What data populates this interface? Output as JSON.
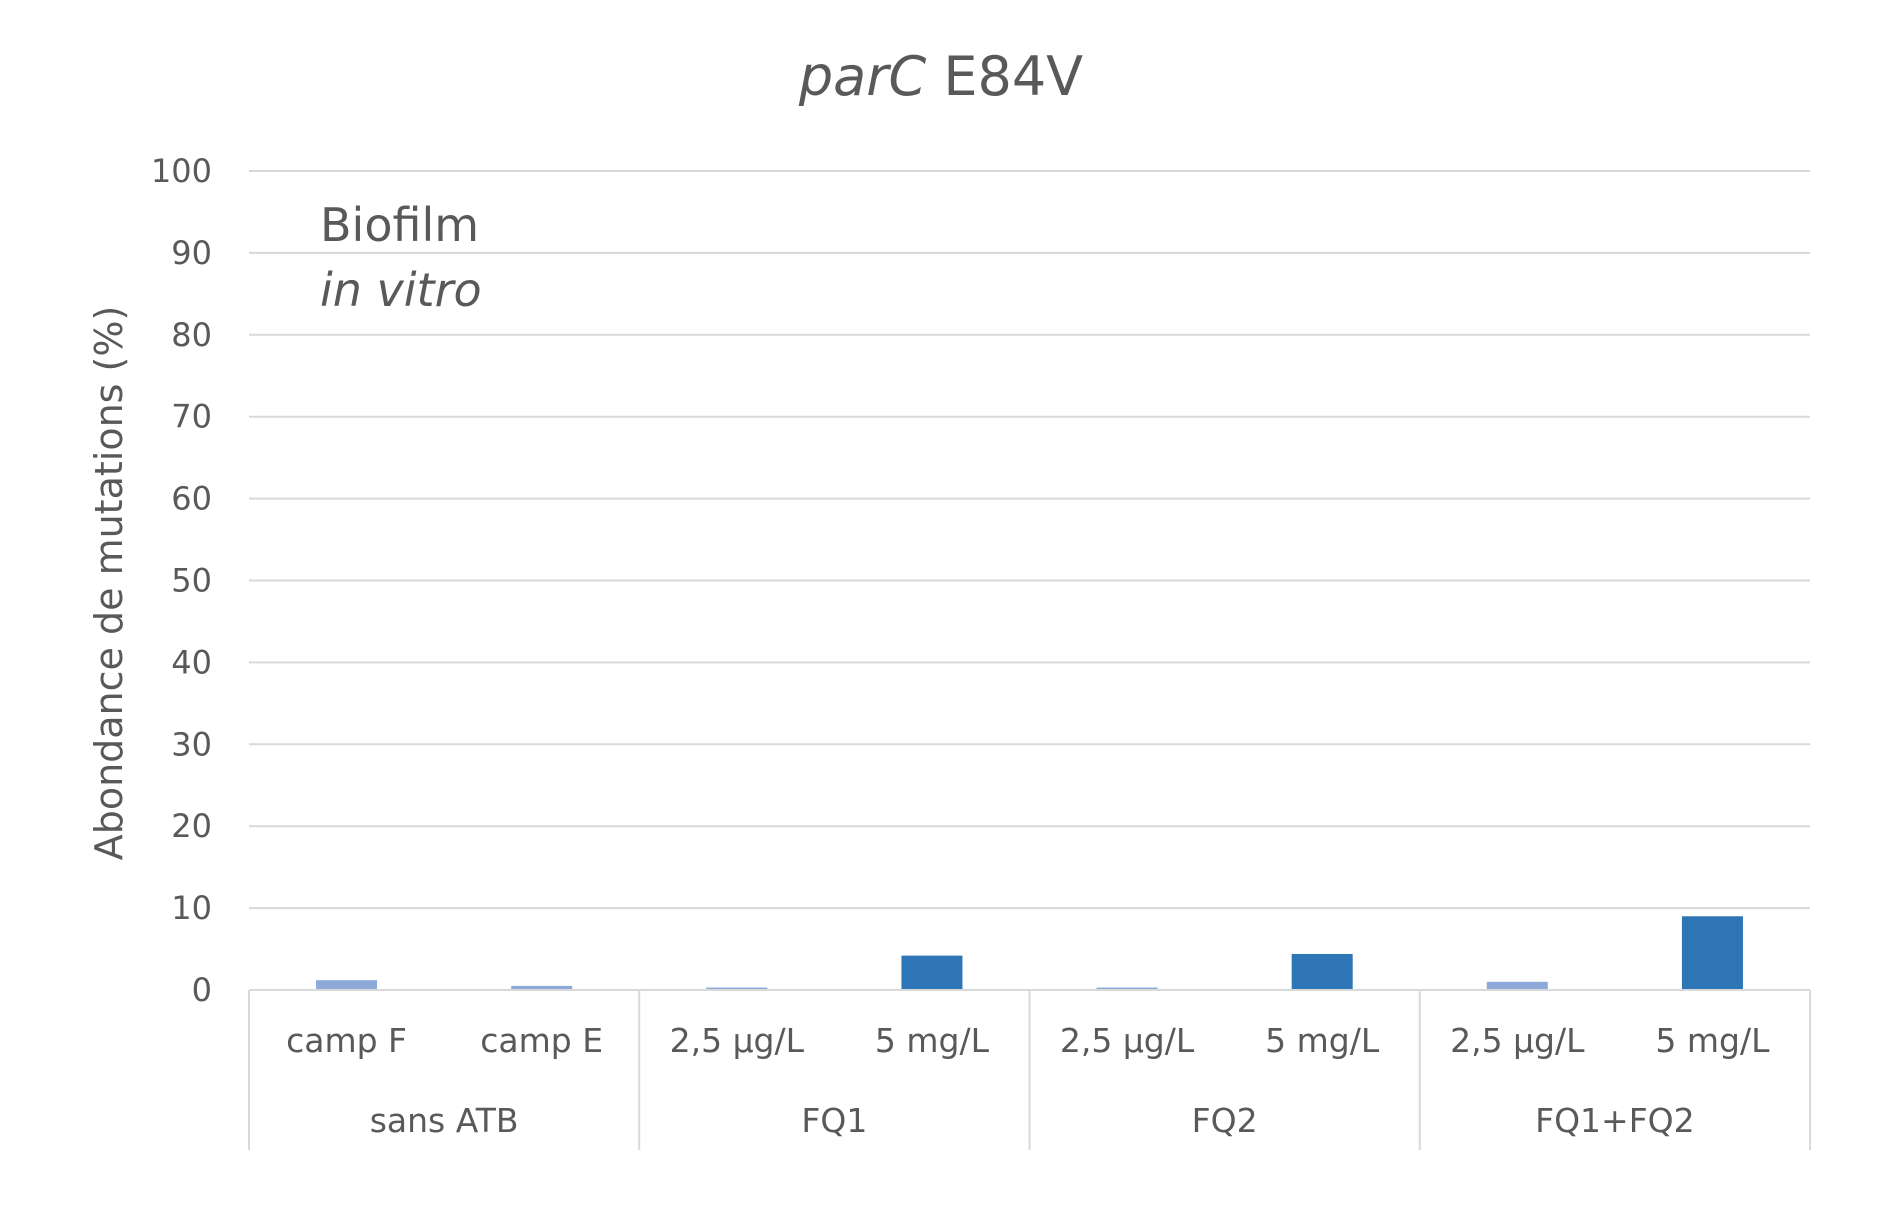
{
  "chart_data": {
    "type": "bar",
    "title_italic": "parC",
    "title_rest": " E84V",
    "ylabel": "Abondance de mutations (%)",
    "xlabel": "",
    "ylim": [
      0,
      100
    ],
    "yticks": [
      0,
      10,
      20,
      30,
      40,
      50,
      60,
      70,
      80,
      90,
      100
    ],
    "grid": true,
    "annotation": {
      "line1": "Biofilm",
      "line2": "in vitro"
    },
    "groups": [
      {
        "label": "sans ATB",
        "categories": [
          "camp F",
          "camp E"
        ]
      },
      {
        "label": "FQ1",
        "categories": [
          "2,5 µg/L",
          "5 mg/L"
        ]
      },
      {
        "label": "FQ2",
        "categories": [
          "2,5 µg/L",
          "5 mg/L"
        ]
      },
      {
        "label": "FQ1+FQ2",
        "categories": [
          "2,5 µg/L",
          "5 mg/L"
        ]
      }
    ],
    "values": [
      1.2,
      0.5,
      0.3,
      4.2,
      0.3,
      4.4,
      1.0,
      9.0
    ],
    "bar_colors": [
      "#8eaadb",
      "#8eaadb",
      "#8eaadb",
      "#2e75b6",
      "#8eaadb",
      "#2e75b6",
      "#8eaadb",
      "#2e75b6"
    ],
    "colors": {
      "text": "#595959",
      "grid": "#d9d9d9"
    }
  }
}
